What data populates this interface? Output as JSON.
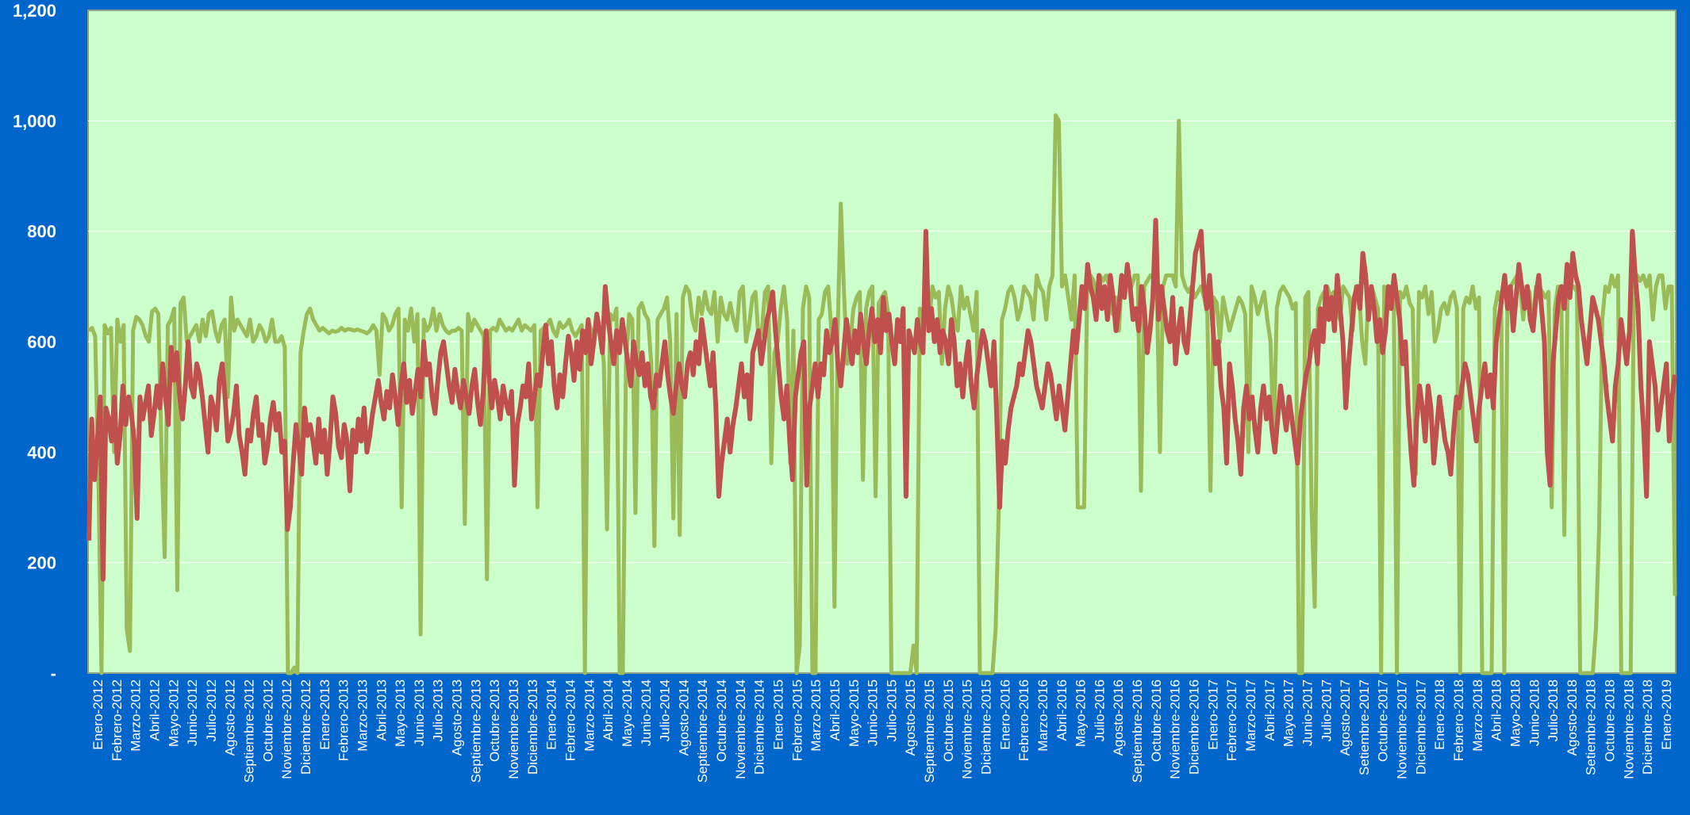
{
  "chart_data": {
    "type": "line",
    "title": "",
    "xlabel": "",
    "ylabel": "",
    "ylim": [
      0,
      1200
    ],
    "y_ticks": [
      {
        "value": 0,
        "label": "-"
      },
      {
        "value": 200,
        "label": "200"
      },
      {
        "value": 400,
        "label": "400"
      },
      {
        "value": 600,
        "label": "600"
      },
      {
        "value": 800,
        "label": "800"
      },
      {
        "value": 1000,
        "label": "1,000"
      },
      {
        "value": 1200,
        "label": "1,200"
      }
    ],
    "x_labels": [
      "Enero-2012",
      "Febrero-2012",
      "Marzo-2012",
      "Abril-2012",
      "Mayo-2012",
      "Junio-2012",
      "Julio-2012",
      "Agosto-2012",
      "Septiembre-2012",
      "Octubre-2012",
      "Noviembre-2012",
      "Diciembre-2012",
      "Enero-2013",
      "Febrero-2013",
      "Marzo-2013",
      "Abril-2013",
      "Mayo-2013",
      "Junio-2013",
      "Julio-2013",
      "Agosto-2013",
      "Septiembre-2013",
      "Octubre-2013",
      "Noviembre-2013",
      "Diciembre-2013",
      "Enero-2014",
      "Febrero-2014",
      "Marzo-2014",
      "Abril-2014",
      "Mayo-2014",
      "Junio-2014",
      "Julio-2014",
      "Agosto-2014",
      "Septiembre-2014",
      "Octubre-2014",
      "Noviembre-2014",
      "Diciembre-2014",
      "Enero-2015",
      "Febrero-2015",
      "Marzo-2015",
      "Abril-2015",
      "Mayo-2015",
      "Junio-2015",
      "Julio-2015",
      "Agosto-2015",
      "Septiembre-2015",
      "Octubre-2015",
      "Noviembre-2015",
      "Diciembre-2015",
      "Enero-2016",
      "Febrero-2016",
      "Marzo-2016",
      "Abril-2016",
      "Mayo-2016",
      "Julio-2016",
      "Agosto-2016",
      "Septiembre-2016",
      "Octubre-2016",
      "Noviembre-2016",
      "Diciembre-2016",
      "Enero-2017",
      "Febrero-2017",
      "Marzo-2017",
      "Abril-2017",
      "Mayo-2017",
      "Junio-2017",
      "Julio-2017",
      "Agosto-2017",
      "Setiembre-2017",
      "Octubre-2017",
      "Noviembre-2017",
      "Diciembre-2017",
      "Enero-2018",
      "Febrero-2018",
      "Marzo-2018",
      "Abril-2018",
      "Mayo-2018",
      "Junio-2018",
      "Julio-2018",
      "Agosto-2018",
      "Setiembre-2018",
      "Octubre-2018",
      "Noviembre-2018",
      "Diciembre-2018",
      "Enero-2019"
    ],
    "grid": true,
    "legend": "none",
    "colors": {
      "background": "#0066cc",
      "plot_area": "#ccffcc",
      "series_a": "#9bbb59",
      "series_b": "#c0504d",
      "gridline": "#ffffff"
    },
    "series": [
      {
        "color": "#9bbb59",
        "values": [
          620,
          625,
          610,
          360,
          0,
          630,
          615,
          625,
          400,
          640,
          600,
          630,
          80,
          40,
          620,
          645,
          640,
          630,
          610,
          600,
          655,
          660,
          650,
          400,
          210,
          630,
          640,
          660,
          150,
          670,
          680,
          600,
          610,
          620,
          630,
          600,
          640,
          610,
          650,
          655,
          620,
          600,
          630,
          640,
          500,
          680,
          620,
          640,
          630,
          620,
          610,
          640,
          600,
          610,
          630,
          620,
          600,
          610,
          640,
          600,
          600,
          610,
          590,
          0,
          0,
          10,
          0,
          580,
          620,
          650,
          660,
          640,
          630,
          620,
          625,
          620,
          615,
          620,
          618,
          620,
          625,
          620,
          623,
          622,
          620,
          622,
          620,
          618,
          615,
          620,
          630,
          620,
          540,
          650,
          640,
          620,
          630,
          650,
          660,
          300,
          640,
          620,
          660,
          600,
          650,
          70,
          640,
          620,
          630,
          660,
          620,
          650,
          630,
          620,
          615,
          620,
          620,
          625,
          620,
          270,
          650,
          620,
          640,
          630,
          620,
          610,
          170,
          620,
          625,
          620,
          640,
          630,
          620,
          625,
          620,
          630,
          640,
          620,
          630,
          625,
          620,
          630,
          300,
          620,
          625,
          630,
          640,
          620,
          610,
          635,
          625,
          630,
          640,
          620,
          610,
          620,
          630,
          0,
          640,
          620,
          610,
          630,
          620,
          560,
          260,
          650,
          640,
          660,
          0,
          0,
          560,
          650,
          640,
          290,
          660,
          670,
          650,
          640,
          560,
          230,
          640,
          650,
          660,
          680,
          600,
          280,
          650,
          250,
          680,
          700,
          690,
          640,
          620,
          680,
          650,
          690,
          660,
          650,
          690,
          600,
          680,
          650,
          640,
          670,
          640,
          620,
          690,
          700,
          600,
          630,
          680,
          690,
          600,
          620,
          690,
          700,
          380,
          580,
          600,
          660,
          700,
          640,
          380,
          620,
          0,
          50,
          660,
          700,
          680,
          0,
          0,
          640,
          650,
          690,
          700,
          620,
          120,
          620,
          850,
          690,
          560,
          600,
          660,
          680,
          690,
          350,
          660,
          690,
          700,
          320,
          670,
          680,
          690,
          650,
          0,
          0,
          0,
          0,
          0,
          0,
          0,
          50,
          0,
          660,
          620,
          680,
          640,
          700,
          680,
          690,
          560,
          660,
          700,
          680,
          640,
          620,
          700,
          660,
          680,
          650,
          620,
          690,
          0,
          0,
          0,
          0,
          0,
          80,
          300,
          640,
          660,
          690,
          700,
          680,
          640,
          660,
          700,
          690,
          680,
          640,
          720,
          700,
          690,
          640,
          700,
          720,
          1010,
          1000,
          700,
          720,
          680,
          640,
          720,
          300,
          300,
          300,
          700,
          720,
          710,
          680,
          720,
          710,
          720,
          700,
          650,
          680,
          620,
          720,
          700,
          720,
          700,
          720,
          720,
          330,
          700,
          710,
          720,
          720,
          710,
          400,
          700,
          720,
          720,
          720,
          700,
          1000,
          720,
          700,
          690,
          700,
          680,
          690,
          700,
          680,
          650,
          330,
          680,
          670,
          600,
          680,
          650,
          620,
          640,
          660,
          680,
          670,
          650,
          400,
          700,
          680,
          650,
          670,
          690,
          640,
          600,
          420,
          660,
          690,
          700,
          690,
          680,
          660,
          670,
          0,
          0,
          680,
          690,
          300,
          120,
          660,
          680,
          690,
          700,
          680,
          690,
          660,
          640,
          700,
          690,
          680,
          620,
          700,
          690,
          600,
          560,
          690,
          700,
          680,
          660,
          0,
          700,
          690,
          700,
          690,
          0,
          690,
          680,
          700,
          670,
          660,
          360,
          690,
          680,
          700,
          650,
          690,
          600,
          620,
          660,
          670,
          650,
          680,
          690,
          660,
          0,
          660,
          680,
          670,
          700,
          660,
          680,
          0,
          0,
          0,
          0,
          660,
          690,
          670,
          0,
          680,
          700,
          710,
          720,
          700,
          640,
          700,
          690,
          620,
          700,
          700,
          690,
          680,
          690,
          300,
          660,
          700,
          690,
          250,
          680,
          700,
          700,
          690,
          0,
          0,
          0,
          0,
          0,
          80,
          260,
          640,
          700,
          690,
          720,
          700,
          720,
          0,
          0,
          0,
          0,
          700,
          720,
          710,
          720,
          700,
          720,
          640,
          700,
          720,
          720,
          660,
          700,
          700,
          140
        ]
      },
      {
        "color": "#c0504d",
        "values": [
          240,
          460,
          350,
          420,
          500,
          170,
          480,
          460,
          420,
          500,
          380,
          430,
          520,
          450,
          500,
          470,
          420,
          280,
          500,
          460,
          490,
          520,
          430,
          470,
          520,
          480,
          560,
          500,
          450,
          590,
          530,
          580,
          500,
          460,
          520,
          600,
          520,
          500,
          560,
          540,
          500,
          450,
          400,
          500,
          480,
          440,
          530,
          560,
          500,
          420,
          440,
          470,
          520,
          430,
          400,
          360,
          440,
          420,
          470,
          500,
          430,
          450,
          380,
          410,
          460,
          490,
          440,
          470,
          400,
          420,
          260,
          300,
          380,
          450,
          410,
          360,
          480,
          430,
          450,
          420,
          380,
          460,
          400,
          440,
          360,
          420,
          500,
          470,
          410,
          390,
          450,
          420,
          330,
          440,
          400,
          460,
          420,
          480,
          400,
          430,
          470,
          500,
          530,
          490,
          460,
          510,
          480,
          540,
          500,
          450,
          520,
          560,
          490,
          530,
          470,
          510,
          550,
          500,
          600,
          540,
          560,
          500,
          470,
          530,
          580,
          600,
          560,
          520,
          490,
          550,
          510,
          480,
          530,
          500,
          470,
          520,
          550,
          490,
          450,
          510,
          620,
          540,
          480,
          530,
          500,
          460,
          520,
          490,
          470,
          510,
          340,
          450,
          480,
          520,
          500,
          560,
          460,
          500,
          540,
          520,
          580,
          630,
          560,
          600,
          520,
          480,
          540,
          500,
          560,
          610,
          580,
          530,
          600,
          550,
          620,
          580,
          640,
          560,
          600,
          650,
          620,
          580,
          700,
          640,
          600,
          560,
          620,
          580,
          640,
          600,
          560,
          520,
          600,
          560,
          540,
          580,
          520,
          560,
          500,
          480,
          540,
          520,
          560,
          600,
          540,
          500,
          470,
          520,
          560,
          520,
          500,
          560,
          580,
          540,
          600,
          560,
          640,
          600,
          560,
          520,
          580,
          480,
          320,
          380,
          420,
          460,
          400,
          450,
          480,
          520,
          560,
          500,
          540,
          460,
          580,
          600,
          620,
          560,
          600,
          640,
          660,
          690,
          620,
          560,
          500,
          460,
          520,
          420,
          350,
          500,
          540,
          580,
          600,
          340,
          480,
          520,
          560,
          500,
          560,
          540,
          620,
          580,
          600,
          640,
          560,
          520,
          580,
          640,
          600,
          560,
          620,
          580,
          650,
          600,
          560,
          620,
          660,
          600,
          640,
          580,
          680,
          620,
          650,
          600,
          560,
          640,
          600,
          660,
          320,
          620,
          600,
          580,
          640,
          600,
          580,
          800,
          620,
          660,
          600,
          640,
          580,
          620,
          600,
          560,
          640,
          600,
          520,
          560,
          500,
          560,
          600,
          520,
          480,
          540,
          580,
          620,
          600,
          560,
          520,
          600,
          460,
          300,
          420,
          380,
          440,
          480,
          500,
          520,
          560,
          540,
          580,
          620,
          600,
          560,
          520,
          500,
          480,
          520,
          560,
          540,
          500,
          460,
          520,
          480,
          440,
          500,
          560,
          620,
          580,
          640,
          700,
          660,
          740,
          700,
          680,
          640,
          720,
          660,
          700,
          640,
          720,
          680,
          620,
          660,
          720,
          680,
          740,
          700,
          640,
          660,
          620,
          700,
          660,
          580,
          620,
          680,
          820,
          640,
          700,
          660,
          620,
          600,
          680,
          560,
          620,
          660,
          600,
          580,
          640,
          700,
          760,
          780,
          800,
          700,
          660,
          720,
          640,
          560,
          600,
          520,
          480,
          380,
          560,
          520,
          460,
          420,
          360,
          480,
          520,
          460,
          500,
          440,
          400,
          480,
          520,
          460,
          500,
          440,
          400,
          460,
          520,
          480,
          440,
          500,
          460,
          420,
          380,
          460,
          500,
          540,
          560,
          600,
          620,
          560,
          660,
          600,
          700,
          640,
          680,
          620,
          720,
          660,
          600,
          480,
          560,
          620,
          680,
          700,
          660,
          760,
          720,
          640,
          700,
          660,
          600,
          640,
          580,
          620,
          700,
          660,
          720,
          680,
          640,
          560,
          600,
          480,
          400,
          340,
          460,
          520,
          480,
          420,
          520,
          480,
          380,
          440,
          500,
          460,
          420,
          400,
          360,
          440,
          500,
          480,
          520,
          560,
          540,
          500,
          460,
          420,
          480,
          520,
          560,
          500,
          540,
          480,
          600,
          640,
          680,
          720,
          660,
          700,
          620,
          680,
          740,
          700,
          660,
          700,
          640,
          620,
          680,
          720,
          660,
          600,
          400,
          340,
          560,
          620,
          680,
          700,
          660,
          740,
          680,
          760,
          720,
          700,
          640,
          600,
          560,
          620,
          680,
          660,
          640,
          600,
          560,
          500,
          460,
          420,
          520,
          560,
          640,
          600,
          560,
          620,
          800,
          720,
          660,
          520,
          440,
          320,
          600,
          560,
          520,
          440,
          480,
          520,
          560,
          420,
          500,
          540
        ]
      }
    ]
  }
}
